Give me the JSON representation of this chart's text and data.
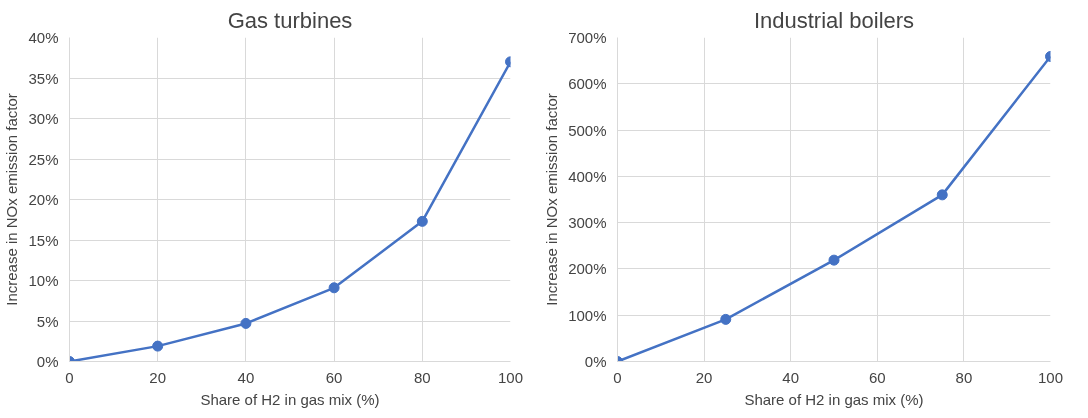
{
  "chart_data": [
    {
      "type": "line",
      "title": "Gas turbines",
      "xlabel": "Share of H2 in gas mix (%)",
      "ylabel": "Increase in NOx emission factor",
      "x": [
        0,
        20,
        40,
        60,
        80,
        100
      ],
      "series": [
        {
          "color": "#4472c4",
          "values": [
            0,
            1.9,
            4.7,
            9.1,
            17.3,
            37.0
          ]
        }
      ],
      "xlim": [
        0,
        100
      ],
      "xticks": [
        0,
        20,
        40,
        60,
        80,
        100
      ],
      "ylim": [
        0,
        40
      ],
      "yticks": [
        {
          "value": 0,
          "label": "0%"
        },
        {
          "value": 5,
          "label": "5%"
        },
        {
          "value": 10,
          "label": "10%"
        },
        {
          "value": 15,
          "label": "15%"
        },
        {
          "value": 20,
          "label": "20%"
        },
        {
          "value": 25,
          "label": "25%"
        },
        {
          "value": 30,
          "label": "30%"
        },
        {
          "value": 35,
          "label": "35%"
        },
        {
          "value": 40,
          "label": "40%"
        }
      ],
      "grid": true,
      "marker": "circle",
      "line_style": "solid"
    },
    {
      "type": "line",
      "title": "Industrial boilers",
      "xlabel": "Share of H2 in gas mix (%)",
      "ylabel": "Increase in NOx emission factor",
      "x": [
        0,
        25,
        50,
        75,
        100
      ],
      "series": [
        {
          "color": "#4472c4",
          "values": [
            0,
            91,
            219,
            360,
            659
          ]
        }
      ],
      "xlim": [
        0,
        100
      ],
      "xticks": [
        0,
        20,
        40,
        60,
        80,
        100
      ],
      "ylim": [
        0,
        700
      ],
      "yticks": [
        {
          "value": 0,
          "label": "0%"
        },
        {
          "value": 100,
          "label": "100%"
        },
        {
          "value": 200,
          "label": "200%"
        },
        {
          "value": 300,
          "label": "300%"
        },
        {
          "value": 400,
          "label": "400%"
        },
        {
          "value": 500,
          "label": "500%"
        },
        {
          "value": 600,
          "label": "600%"
        },
        {
          "value": 700,
          "label": "700%"
        }
      ],
      "grid": true,
      "marker": "circle",
      "line_style": "solid"
    }
  ]
}
